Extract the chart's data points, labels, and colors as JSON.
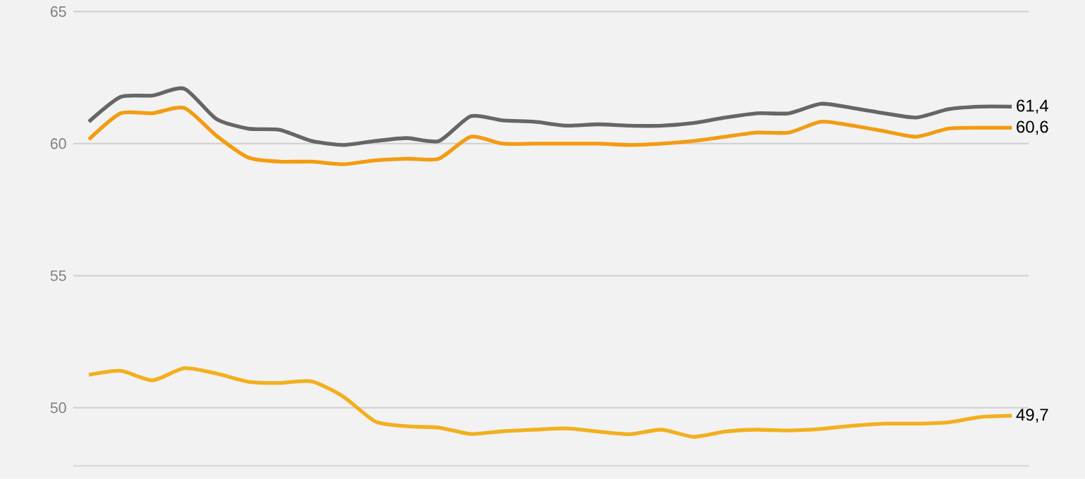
{
  "chart_data": {
    "type": "line",
    "categories": [
      null,
      null,
      null,
      null,
      null,
      null,
      null,
      null,
      null,
      null,
      null,
      null,
      null,
      null,
      null,
      null,
      null,
      null,
      null,
      null,
      null,
      null,
      null,
      null,
      null,
      null,
      null,
      null,
      null,
      null
    ],
    "series": [
      {
        "color": "#666666",
        "values": [
          60.83,
          61.77,
          61.82,
          62.08,
          60.94,
          60.57,
          60.52,
          60.1,
          59.95,
          60.1,
          60.21,
          60.1,
          61.04,
          60.88,
          60.83,
          60.68,
          60.73,
          60.68,
          60.68,
          60.78,
          60.99,
          61.15,
          61.15,
          61.51,
          61.35,
          61.15,
          60.99,
          61.3,
          61.4,
          61.4
        ],
        "value_labels": [
          null,
          null,
          null,
          null,
          null,
          null,
          null,
          null,
          null,
          null,
          null,
          null,
          null,
          null,
          null,
          null,
          null,
          null,
          null,
          null,
          null,
          null,
          null,
          null,
          null,
          null,
          null,
          null,
          null,
          "61,4"
        ]
      },
      {
        "color": "#f39c12",
        "values": [
          60.16,
          61.15,
          61.15,
          61.35,
          60.31,
          59.48,
          59.32,
          59.32,
          59.22,
          59.37,
          59.43,
          59.43,
          60.26,
          60.0,
          60.0,
          60.0,
          60.0,
          59.95,
          60.0,
          60.1,
          60.26,
          60.42,
          60.42,
          60.83,
          60.68,
          60.47,
          60.26,
          60.57,
          60.6,
          60.6
        ],
        "value_labels": [
          null,
          null,
          null,
          null,
          null,
          null,
          null,
          null,
          null,
          null,
          null,
          null,
          null,
          null,
          null,
          null,
          null,
          null,
          null,
          null,
          null,
          null,
          null,
          null,
          null,
          null,
          null,
          null,
          null,
          "60,6"
        ]
      },
      {
        "color": "#f2b01e",
        "values": [
          51.25,
          51.4,
          51.04,
          51.5,
          51.3,
          50.99,
          50.94,
          51.0,
          50.42,
          49.48,
          49.3,
          49.25,
          49.01,
          49.11,
          49.17,
          49.22,
          49.1,
          49.0,
          49.17,
          48.9,
          49.1,
          49.17,
          49.14,
          49.2,
          49.32,
          49.4,
          49.4,
          49.45,
          49.65,
          49.7
        ],
        "value_labels": [
          null,
          null,
          null,
          null,
          null,
          null,
          null,
          null,
          null,
          null,
          null,
          null,
          null,
          null,
          null,
          null,
          null,
          null,
          null,
          null,
          null,
          null,
          null,
          null,
          null,
          null,
          null,
          null,
          null,
          "49,7"
        ]
      }
    ],
    "ylim": [
      47.8,
      65.4
    ],
    "yticks": [
      50,
      55,
      60,
      65
    ],
    "grid": "y",
    "legend": false,
    "marker": "none",
    "line_style": "solid",
    "tick_labels": "y"
  }
}
